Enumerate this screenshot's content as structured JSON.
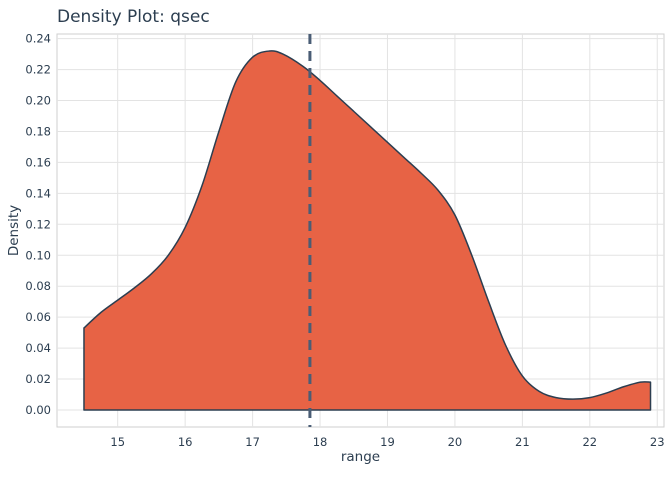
{
  "chart_data": {
    "type": "area",
    "title": "Density Plot: qsec",
    "xlabel": "range",
    "ylabel": "Density",
    "xlim": [
      14.1,
      23.1
    ],
    "ylim": [
      -0.011,
      0.243
    ],
    "x_ticks": [
      15,
      16,
      17,
      18,
      19,
      20,
      21,
      22,
      23
    ],
    "x_tick_labels": [
      "15",
      "16",
      "17",
      "18",
      "19",
      "20",
      "21",
      "22",
      "23"
    ],
    "y_ticks": [
      0,
      0.02,
      0.04,
      0.06,
      0.08,
      0.1,
      0.12,
      0.14,
      0.16,
      0.18,
      0.2,
      0.22,
      0.24
    ],
    "y_tick_labels": [
      "0.00",
      "0.02",
      "0.04",
      "0.06",
      "0.08",
      "0.10",
      "0.12",
      "0.14",
      "0.16",
      "0.18",
      "0.20",
      "0.22",
      "0.24"
    ],
    "grid": true,
    "fill_color": "#E76345",
    "line_color": "#2C3E50",
    "mean_line_color": "#4A5D75",
    "mean_value": 17.85,
    "series": [
      {
        "x": [
          14.5,
          14.75,
          15.0,
          15.25,
          15.5,
          15.75,
          16.0,
          16.25,
          16.5,
          16.75,
          17.0,
          17.25,
          17.45,
          17.75,
          18.0,
          18.25,
          18.5,
          18.75,
          19.0,
          19.25,
          19.5,
          19.75,
          20.0,
          20.25,
          20.5,
          20.75,
          21.0,
          21.25,
          21.5,
          21.75,
          22.0,
          22.25,
          22.5,
          22.75,
          22.9
        ],
        "y": [
          0.053,
          0.063,
          0.071,
          0.079,
          0.088,
          0.1,
          0.118,
          0.145,
          0.18,
          0.212,
          0.228,
          0.232,
          0.23,
          0.222,
          0.213,
          0.203,
          0.193,
          0.183,
          0.173,
          0.163,
          0.153,
          0.142,
          0.126,
          0.1,
          0.07,
          0.042,
          0.022,
          0.012,
          0.008,
          0.007,
          0.008,
          0.011,
          0.015,
          0.018,
          0.018
        ]
      }
    ]
  }
}
